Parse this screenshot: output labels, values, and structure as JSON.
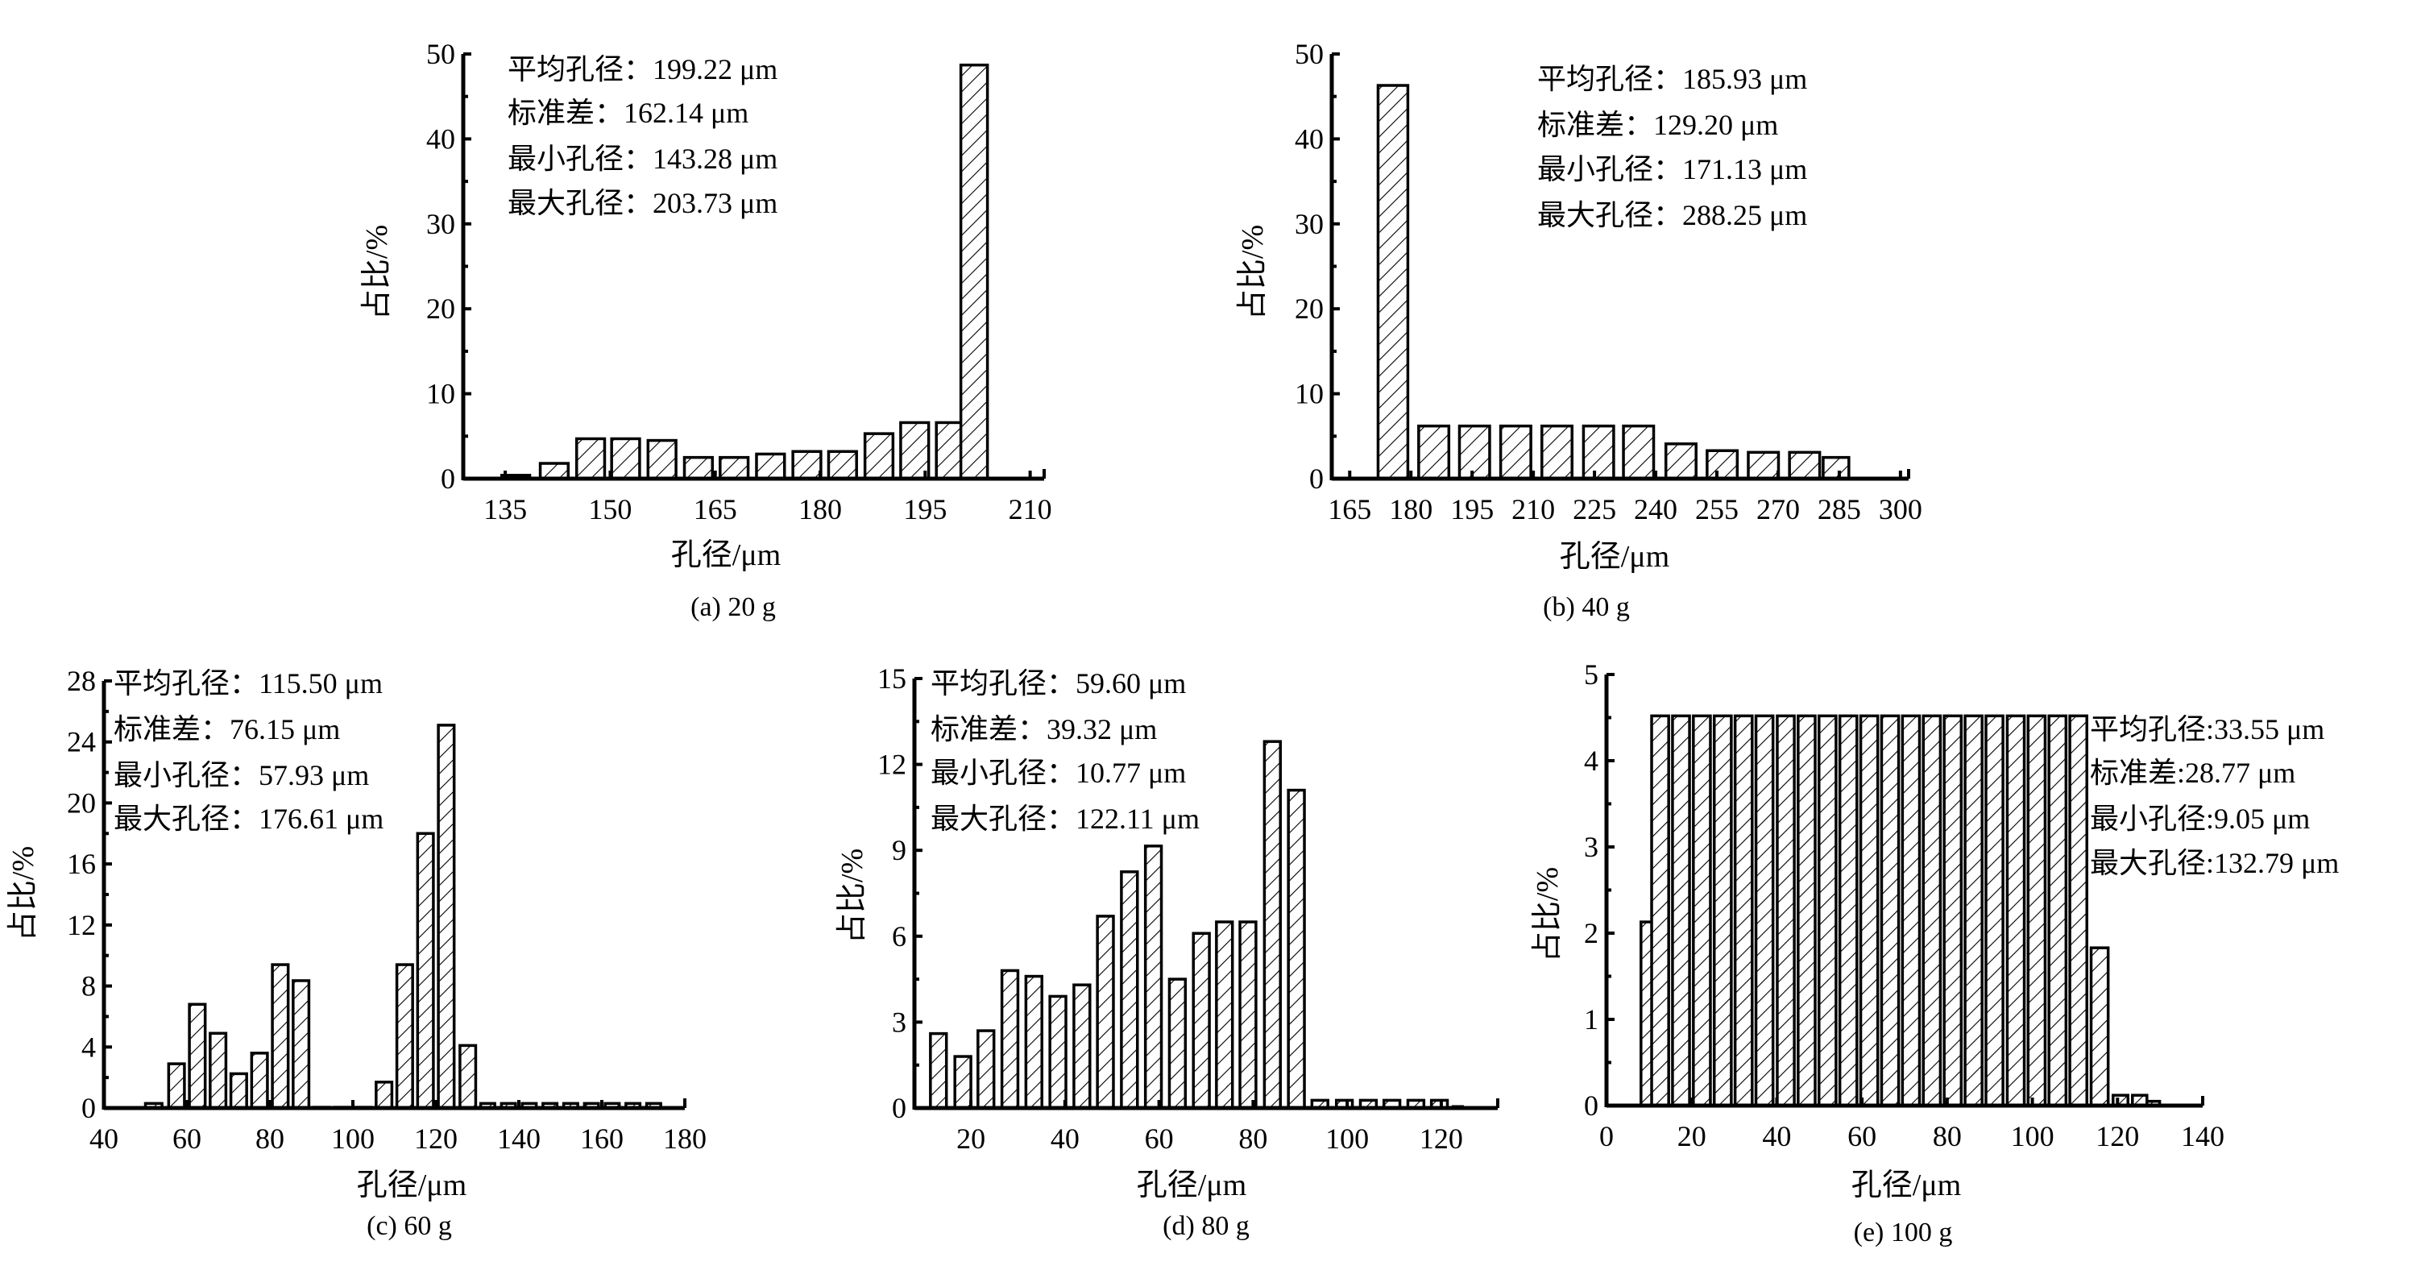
{
  "colors": {
    "bar_fill": "#ffffff",
    "bar_stroke": "#000000",
    "hatch": "#000000",
    "axis": "#000000"
  },
  "chart_data": [
    {
      "type": "bar",
      "caption": "(a)  20 g",
      "xlabel": "孔径/μm",
      "ylabel": "占比/%",
      "stats": [
        "平均孔径：199.22 μm",
        "标准差：162.14 μm",
        "最小孔径：143.28 μm",
        "最大孔径：203.73 μm"
      ],
      "xlim": [
        129,
        212
      ],
      "ylim": [
        0,
        50
      ],
      "xticks": [
        "135",
        "150",
        "165",
        "180",
        "195",
        "210"
      ],
      "yticks": [
        "0",
        "10",
        "20",
        "30",
        "40",
        "50"
      ],
      "yminor": 5,
      "bars": [
        {
          "x": 136.5,
          "w": 4,
          "h": 0.4
        },
        {
          "x": 142,
          "w": 4,
          "h": 1.8
        },
        {
          "x": 147.2,
          "w": 4,
          "h": 4.7
        },
        {
          "x": 152.2,
          "w": 4,
          "h": 4.7
        },
        {
          "x": 157.4,
          "w": 4,
          "h": 4.5
        },
        {
          "x": 162.6,
          "w": 4,
          "h": 2.5
        },
        {
          "x": 167.7,
          "w": 4,
          "h": 2.5
        },
        {
          "x": 172.9,
          "w": 4,
          "h": 2.9
        },
        {
          "x": 178.1,
          "w": 4,
          "h": 3.2
        },
        {
          "x": 183.2,
          "w": 4,
          "h": 3.2
        },
        {
          "x": 188.4,
          "w": 4,
          "h": 5.3
        },
        {
          "x": 193.5,
          "w": 4,
          "h": 6.6
        },
        {
          "x": 198.6,
          "w": 4,
          "h": 6.6
        },
        {
          "x": 202,
          "w": 3.8,
          "h": 48.7
        }
      ]
    },
    {
      "type": "bar",
      "caption": "(b)  40 g",
      "xlabel": "孔径/μm",
      "ylabel": "占比/%",
      "stats": [
        "平均孔径：185.93 μm",
        "标准差：129.20 μm",
        "最小孔径：171.13 μm",
        "最大孔径：288.25 μm"
      ],
      "xlim": [
        160.6,
        302
      ],
      "ylim": [
        0,
        50
      ],
      "xticks": [
        "165",
        "180",
        "195",
        "210",
        "225",
        "240",
        "255",
        "270",
        "285",
        "300"
      ],
      "yticks": [
        "0",
        "10",
        "20",
        "30",
        "40",
        "50"
      ],
      "yminor": 5,
      "bars": [
        {
          "x": 175.6,
          "w": 7.3,
          "h": 46.3
        },
        {
          "x": 185.6,
          "w": 7.4,
          "h": 6.2
        },
        {
          "x": 195.6,
          "w": 7.4,
          "h": 6.2
        },
        {
          "x": 205.7,
          "w": 7.4,
          "h": 6.2
        },
        {
          "x": 215.8,
          "w": 7.4,
          "h": 6.2
        },
        {
          "x": 226,
          "w": 7.4,
          "h": 6.2
        },
        {
          "x": 235.8,
          "w": 7.4,
          "h": 6.2
        },
        {
          "x": 246.2,
          "w": 7.4,
          "h": 4.1
        },
        {
          "x": 256.3,
          "w": 7.4,
          "h": 3.3
        },
        {
          "x": 266.4,
          "w": 7.4,
          "h": 3.1
        },
        {
          "x": 276.5,
          "w": 7.4,
          "h": 3.1
        },
        {
          "x": 284.2,
          "w": 6.3,
          "h": 2.5
        }
      ]
    },
    {
      "type": "bar",
      "caption": "(c)  60 g",
      "xlabel": "孔径/μm",
      "ylabel": "占比/%",
      "stats": [
        "平均孔径：115.50 μm",
        "标准差：76.15 μm",
        "最小孔径：57.93 μm",
        "最大孔径：176.61 μm"
      ],
      "xlim": [
        40,
        180
      ],
      "ylim": [
        0,
        28
      ],
      "xticks": [
        "40",
        "60",
        "80",
        "100",
        "120",
        "140",
        "160",
        "180"
      ],
      "yticks": [
        "0",
        "4",
        "8",
        "12",
        "16",
        "20",
        "24",
        "28"
      ],
      "yminor": 2,
      "bars": [
        {
          "x": 52,
          "w": 4,
          "h": 0.3
        },
        {
          "x": 57.5,
          "w": 3.8,
          "h": 2.9
        },
        {
          "x": 62.5,
          "w": 3.8,
          "h": 6.8
        },
        {
          "x": 67.5,
          "w": 3.8,
          "h": 4.9
        },
        {
          "x": 72.5,
          "w": 3.8,
          "h": 2.25
        },
        {
          "x": 77.5,
          "w": 3.8,
          "h": 3.6
        },
        {
          "x": 82.5,
          "w": 3.8,
          "h": 9.4
        },
        {
          "x": 87.5,
          "w": 3.8,
          "h": 8.35
        },
        {
          "x": 92.5,
          "w": 3.8,
          "h": 0.05
        },
        {
          "x": 97.5,
          "w": 3.8,
          "h": 0.05
        },
        {
          "x": 102.5,
          "w": 3.8,
          "h": 0.05
        },
        {
          "x": 107.5,
          "w": 3.8,
          "h": 1.7
        },
        {
          "x": 112.5,
          "w": 3.8,
          "h": 9.4
        },
        {
          "x": 117.5,
          "w": 3.8,
          "h": 18
        },
        {
          "x": 122.5,
          "w": 3.8,
          "h": 25.1
        },
        {
          "x": 127.7,
          "w": 3.8,
          "h": 4.1
        },
        {
          "x": 132.5,
          "w": 3.4,
          "h": 0.3
        },
        {
          "x": 137.5,
          "w": 3.4,
          "h": 0.3
        },
        {
          "x": 142.5,
          "w": 3.4,
          "h": 0.3
        },
        {
          "x": 147.5,
          "w": 3.4,
          "h": 0.3
        },
        {
          "x": 152.5,
          "w": 3.4,
          "h": 0.3
        },
        {
          "x": 157.5,
          "w": 3.4,
          "h": 0.3
        },
        {
          "x": 162.5,
          "w": 3.4,
          "h": 0.3
        },
        {
          "x": 167.5,
          "w": 3.4,
          "h": 0.3
        },
        {
          "x": 172.5,
          "w": 3.4,
          "h": 0.3
        }
      ]
    },
    {
      "type": "bar",
      "caption": "(d)  80 g",
      "xlabel": "孔径/μm",
      "ylabel": "占比/%",
      "stats": [
        "平均孔径：59.60 μm",
        "标准差：39.32 μm",
        "最小孔径：10.77 μm",
        "最大孔径：122.11 μm"
      ],
      "xlim": [
        8,
        132
      ],
      "ylim": [
        0,
        15
      ],
      "xticks": [
        "20",
        "40",
        "60",
        "80",
        "100",
        "120"
      ],
      "xtick_values": [
        20,
        40,
        60,
        80,
        100,
        120
      ],
      "yticks": [
        "0",
        "3",
        "6",
        "9",
        "12",
        "15"
      ],
      "yminor": 1.5,
      "bars": [
        {
          "x": 13.1,
          "w": 3.4,
          "h": 2.6
        },
        {
          "x": 18.3,
          "w": 3.4,
          "h": 1.8
        },
        {
          "x": 23.2,
          "w": 3.4,
          "h": 2.7
        },
        {
          "x": 28.3,
          "w": 3.4,
          "h": 4.8
        },
        {
          "x": 33.4,
          "w": 3.4,
          "h": 4.6
        },
        {
          "x": 38.5,
          "w": 3.4,
          "h": 3.9
        },
        {
          "x": 43.6,
          "w": 3.4,
          "h": 4.3
        },
        {
          "x": 48.6,
          "w": 3.4,
          "h": 6.7
        },
        {
          "x": 53.7,
          "w": 3.4,
          "h": 8.25
        },
        {
          "x": 58.8,
          "w": 3.4,
          "h": 9.15
        },
        {
          "x": 63.9,
          "w": 3.4,
          "h": 4.5
        },
        {
          "x": 69.0,
          "w": 3.4,
          "h": 6.1
        },
        {
          "x": 73.9,
          "w": 3.4,
          "h": 6.5
        },
        {
          "x": 78.9,
          "w": 3.4,
          "h": 6.5
        },
        {
          "x": 84.1,
          "w": 3.4,
          "h": 12.8
        },
        {
          "x": 89.2,
          "w": 3.4,
          "h": 11.1
        },
        {
          "x": 94.2,
          "w": 3.4,
          "h": 0.27
        },
        {
          "x": 99.4,
          "w": 3.4,
          "h": 0.27
        },
        {
          "x": 104.5,
          "w": 3.4,
          "h": 0.27
        },
        {
          "x": 109.5,
          "w": 3.4,
          "h": 0.27
        },
        {
          "x": 114.6,
          "w": 3.4,
          "h": 0.27
        },
        {
          "x": 119.6,
          "w": 3.4,
          "h": 0.27
        },
        {
          "x": 123.5,
          "w": 2,
          "h": 0.05
        }
      ]
    },
    {
      "type": "bar",
      "caption": "(e)  100 g",
      "xlabel": "孔径/μm",
      "ylabel": "占比/%",
      "stats": [
        "平均孔径:33.55 μm",
        "标准差:28.77 μm",
        "最小孔径:9.05 μm",
        "最大孔径:132.79 μm"
      ],
      "xlim": [
        0,
        140
      ],
      "ylim": [
        0,
        5
      ],
      "xticks": [
        "0",
        "20",
        "40",
        "60",
        "80",
        "100",
        "120",
        "140"
      ],
      "yticks": [
        "0",
        "1",
        "2",
        "3",
        "4",
        "5"
      ],
      "yminor": 0.5,
      "bars": [
        {
          "x": 10.1,
          "w": 4,
          "h": 2.13
        },
        {
          "x": 12.6,
          "w": 4,
          "h": 4.52
        },
        {
          "x": 17.5,
          "w": 4,
          "h": 4.52
        },
        {
          "x": 22.4,
          "w": 4,
          "h": 4.52
        },
        {
          "x": 27.3,
          "w": 4,
          "h": 4.52
        },
        {
          "x": 32.2,
          "w": 4,
          "h": 4.52
        },
        {
          "x": 37.1,
          "w": 4,
          "h": 4.52
        },
        {
          "x": 42.1,
          "w": 4,
          "h": 4.52
        },
        {
          "x": 47.0,
          "w": 4,
          "h": 4.52
        },
        {
          "x": 51.9,
          "w": 4,
          "h": 4.52
        },
        {
          "x": 56.8,
          "w": 4,
          "h": 4.52
        },
        {
          "x": 61.7,
          "w": 4,
          "h": 4.52
        },
        {
          "x": 66.6,
          "w": 4,
          "h": 4.52
        },
        {
          "x": 71.5,
          "w": 4,
          "h": 4.52
        },
        {
          "x": 76.4,
          "w": 4,
          "h": 4.52
        },
        {
          "x": 81.3,
          "w": 4,
          "h": 4.52
        },
        {
          "x": 86.2,
          "w": 4,
          "h": 4.52
        },
        {
          "x": 91.1,
          "w": 4,
          "h": 4.52
        },
        {
          "x": 96.1,
          "w": 4,
          "h": 4.52
        },
        {
          "x": 101.0,
          "w": 4,
          "h": 4.52
        },
        {
          "x": 105.9,
          "w": 4,
          "h": 4.52
        },
        {
          "x": 110.8,
          "w": 4,
          "h": 4.52
        },
        {
          "x": 115.8,
          "w": 4,
          "h": 1.83
        },
        {
          "x": 120.7,
          "w": 3.5,
          "h": 0.12
        },
        {
          "x": 125.2,
          "w": 3.4,
          "h": 0.12
        },
        {
          "x": 128.4,
          "w": 3,
          "h": 0.05
        }
      ]
    }
  ]
}
